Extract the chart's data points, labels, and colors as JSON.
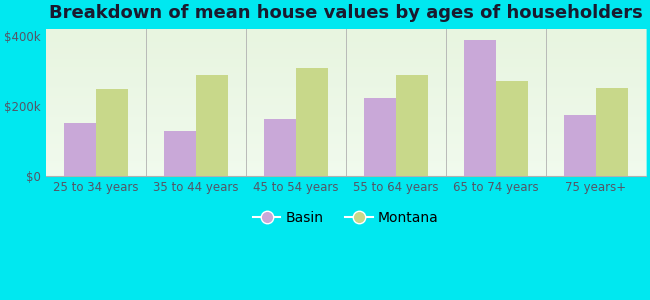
{
  "title": "Breakdown of mean house values by ages of householders",
  "categories": [
    "25 to 34 years",
    "35 to 44 years",
    "45 to 54 years",
    "55 to 64 years",
    "65 to 74 years",
    "75 years+"
  ],
  "basin_values": [
    150000,
    128000,
    163000,
    222000,
    388000,
    173000
  ],
  "montana_values": [
    248000,
    288000,
    308000,
    288000,
    272000,
    252000
  ],
  "basin_color": "#c9a8d8",
  "montana_color": "#c8d88a",
  "background_color": "#00e8f0",
  "plot_bg_top": "#e8f5e0",
  "plot_bg_bottom": "#f5fdf0",
  "ylim": [
    0,
    420000
  ],
  "yticks": [
    0,
    200000,
    400000
  ],
  "ytick_labels": [
    "$0",
    "$200k",
    "$400k"
  ],
  "legend_basin": "Basin",
  "legend_montana": "Montana",
  "bar_width": 0.32,
  "title_fontsize": 13,
  "tick_fontsize": 8.5,
  "legend_fontsize": 10,
  "separator_color": "#b0b0b0"
}
